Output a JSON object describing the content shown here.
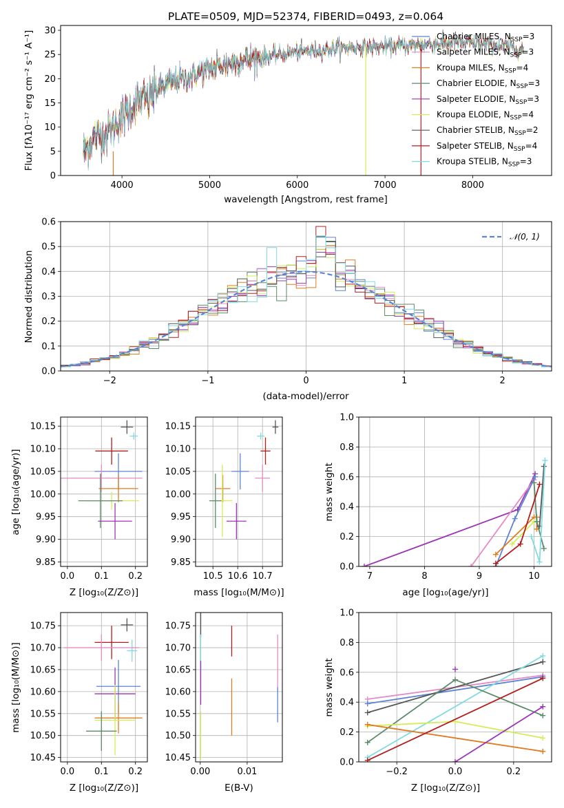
{
  "colors": {
    "chabrier_miles": "#5b84d4",
    "salpeter_miles": "#e58ac5",
    "kroupa_miles": "#e07b1f",
    "chabrier_elodie": "#5a8a68",
    "salpeter_elodie": "#9b35b5",
    "kroupa_elodie": "#d6ec55",
    "chabrier_stelib": "#555555",
    "salpeter_stelib": "#b51c1c",
    "kroupa_stelib": "#7fdbe0"
  },
  "legend_entries": [
    {
      "key": "chabrier_miles",
      "pre": "Chabrier MILES, N",
      "sub": "SSP",
      "post": "=3"
    },
    {
      "key": "salpeter_miles",
      "pre": "Salpeter MILES, N",
      "sub": "SSP",
      "post": "=3"
    },
    {
      "key": "kroupa_miles",
      "pre": "Kroupa MILES, N",
      "sub": "SSP",
      "post": "=4"
    },
    {
      "key": "chabrier_elodie",
      "pre": "Chabrier ELODIE, N",
      "sub": "SSP",
      "post": "=3"
    },
    {
      "key": "salpeter_elodie",
      "pre": "Salpeter ELODIE, N",
      "sub": "SSP",
      "post": "=3"
    },
    {
      "key": "kroupa_elodie",
      "pre": "Kroupa ELODIE, N",
      "sub": "SSP",
      "post": "=4"
    },
    {
      "key": "chabrier_stelib",
      "pre": "Chabrier STELIB, N",
      "sub": "SSP",
      "post": "=2"
    },
    {
      "key": "salpeter_stelib",
      "pre": "Salpeter STELIB, N",
      "sub": "SSP",
      "post": "=4"
    },
    {
      "key": "kroupa_stelib",
      "pre": "Kroupa STELIB, N",
      "sub": "SSP",
      "post": "=3"
    }
  ],
  "chart_data": [
    {
      "id": "spectrum",
      "type": "line",
      "title": "PLATE=0509, MJD=52374, FIBERID=0493, z=0.064",
      "xlabel": "wavelength [Angstrom, rest frame]",
      "ylabel": "Flux [fλ10⁻¹⁷ erg cm⁻² s⁻¹ A⁻¹]",
      "xlim": [
        3300,
        8900
      ],
      "ylim": [
        0,
        31
      ],
      "xticks": [
        4000,
        5000,
        6000,
        7000,
        8000
      ],
      "yticks": [
        0,
        5,
        10,
        15,
        20,
        25,
        30
      ],
      "continuum": [
        [
          3560,
          5
        ],
        [
          3700,
          8
        ],
        [
          3850,
          9
        ],
        [
          3950,
          11
        ],
        [
          4050,
          13
        ],
        [
          4150,
          15
        ],
        [
          4300,
          16
        ],
        [
          4400,
          18
        ],
        [
          4600,
          19.5
        ],
        [
          4800,
          20.5
        ],
        [
          5000,
          22
        ],
        [
          5200,
          23
        ],
        [
          5400,
          24
        ],
        [
          5600,
          24.5
        ],
        [
          5800,
          25
        ],
        [
          6000,
          25.5
        ],
        [
          6300,
          26
        ],
        [
          6600,
          26.5
        ],
        [
          7000,
          26.5
        ],
        [
          7400,
          27
        ],
        [
          7800,
          27.5
        ],
        [
          8200,
          27
        ],
        [
          8600,
          26
        ]
      ],
      "spikes": [
        {
          "x": 3900,
          "y": 5
        },
        {
          "x": 6780,
          "y": 27
        },
        {
          "x": 7410,
          "y": 27
        }
      ],
      "legend": "top-right"
    },
    {
      "id": "residuals",
      "type": "step",
      "xlabel": "(data-model)/error",
      "ylabel": "Normed distribution",
      "xlim": [
        -2.5,
        2.5
      ],
      "ylim": [
        0,
        0.6
      ],
      "xticks": [
        -2,
        -1,
        0,
        1,
        2
      ],
      "yticks": [
        0,
        0.1,
        0.2,
        0.3,
        0.4,
        0.5,
        0.6
      ],
      "normal_label": "𝒩(0, 1)",
      "normal_mean": 0,
      "normal_sigma": 1,
      "bin_width": 0.1,
      "legend": "top-right"
    },
    {
      "id": "age_vs_Z",
      "type": "errorbar",
      "xlabel": "Z [log₁₀(Z/Z⊙)]",
      "ylabel": "age  [log₁₀(age/yr)]",
      "xlim": [
        -0.02,
        0.235
      ],
      "ylim": [
        9.84,
        10.17
      ],
      "xticks": [
        0.0,
        0.1,
        0.2
      ],
      "yticks": [
        9.85,
        9.9,
        9.95,
        10.0,
        10.05,
        10.1,
        10.15
      ],
      "points": [
        {
          "key": "chabrier_stelib",
          "x": 0.175,
          "y": 10.148,
          "xerr": 0.018,
          "yerr": 0.015
        },
        {
          "key": "kroupa_stelib",
          "x": 0.195,
          "y": 10.128,
          "xerr": 0.012,
          "yerr": 0.008
        },
        {
          "key": "salpeter_stelib",
          "x": 0.13,
          "y": 10.095,
          "xerr": 0.048,
          "yerr": 0.03
        },
        {
          "key": "chabrier_miles",
          "x": 0.15,
          "y": 10.05,
          "xerr": 0.07,
          "yerr": 0.04
        },
        {
          "key": "salpeter_miles",
          "x": 0.1,
          "y": 10.035,
          "xerr": 0.12,
          "yerr": 0.03
        },
        {
          "key": "kroupa_miles",
          "x": 0.15,
          "y": 10.012,
          "xerr": 0.058,
          "yerr": 0.03
        },
        {
          "key": "kroupa_elodie",
          "x": 0.13,
          "y": 9.985,
          "xerr": 0.08,
          "yerr": 0.02
        },
        {
          "key": "chabrier_elodie",
          "x": 0.097,
          "y": 9.985,
          "xerr": 0.065,
          "yerr": 0.06
        },
        {
          "key": "salpeter_elodie",
          "x": 0.14,
          "y": 9.94,
          "xerr": 0.05,
          "yerr": 0.04
        }
      ]
    },
    {
      "id": "age_vs_mass",
      "type": "errorbar",
      "xlabel": "mass [log₁₀(M/M⊙)]",
      "ylabel": "",
      "xlim": [
        10.43,
        10.78
      ],
      "ylim": [
        9.84,
        10.17
      ],
      "xticks": [
        10.5,
        10.6,
        10.7
      ],
      "yticks": [
        9.85,
        9.9,
        9.95,
        10.0,
        10.05,
        10.1,
        10.15
      ],
      "points": [
        {
          "key": "chabrier_stelib",
          "x": 10.752,
          "y": 10.148,
          "xerr": 0.012,
          "yerr": 0.015
        },
        {
          "key": "kroupa_stelib",
          "x": 10.693,
          "y": 10.128,
          "xerr": 0.015,
          "yerr": 0.008
        },
        {
          "key": "salpeter_stelib",
          "x": 10.712,
          "y": 10.095,
          "xerr": 0.02,
          "yerr": 0.03
        },
        {
          "key": "chabrier_miles",
          "x": 10.61,
          "y": 10.05,
          "xerr": 0.035,
          "yerr": 0.04
        },
        {
          "key": "salpeter_miles",
          "x": 10.7,
          "y": 10.035,
          "xerr": 0.03,
          "yerr": 0.03
        },
        {
          "key": "kroupa_miles",
          "x": 10.54,
          "y": 10.012,
          "xerr": 0.03,
          "yerr": 0.03
        },
        {
          "key": "kroupa_elodie",
          "x": 10.538,
          "y": 9.985,
          "xerr": 0.04,
          "yerr": 0.08
        },
        {
          "key": "chabrier_elodie",
          "x": 10.51,
          "y": 9.985,
          "xerr": 0.025,
          "yerr": 0.06
        },
        {
          "key": "salpeter_elodie",
          "x": 10.595,
          "y": 9.94,
          "xerr": 0.04,
          "yerr": 0.04
        }
      ]
    },
    {
      "id": "weight_vs_age",
      "type": "line",
      "xlabel": "age  [log₁₀(age/yr)]",
      "ylabel": "mass weight",
      "xlim": [
        6.8,
        10.32
      ],
      "ylim": [
        0,
        1.0
      ],
      "xticks": [
        7,
        8,
        9,
        10
      ],
      "yticks": [
        0,
        0.2,
        0.4,
        0.6,
        0.8,
        1.0
      ],
      "series": [
        {
          "key": "salpeter_elodie",
          "points": [
            [
              6.9,
              0.0
            ],
            [
              9.7,
              0.38
            ],
            [
              10.02,
              0.62
            ]
          ]
        },
        {
          "key": "salpeter_miles",
          "points": [
            [
              8.85,
              0.0
            ],
            [
              10.0,
              0.58
            ]
          ]
        },
        {
          "key": "chabrier_miles",
          "points": [
            [
              9.3,
              0.0
            ],
            [
              9.65,
              0.32
            ],
            [
              10.02,
              0.6
            ]
          ]
        },
        {
          "key": "kroupa_miles",
          "points": [
            [
              9.3,
              0.08
            ],
            [
              10.0,
              0.33
            ],
            [
              10.05,
              0.33
            ],
            [
              10.05,
              0.25
            ]
          ]
        },
        {
          "key": "kroupa_elodie",
          "points": [
            [
              9.6,
              0.15
            ],
            [
              10.0,
              0.3
            ],
            [
              10.05,
              0.3
            ]
          ]
        },
        {
          "key": "chabrier_elodie",
          "points": [
            [
              10.0,
              0.56
            ],
            [
              10.05,
              0.3
            ],
            [
              10.18,
              0.12
            ]
          ]
        },
        {
          "key": "salpeter_stelib",
          "points": [
            [
              9.3,
              0.02
            ],
            [
              9.75,
              0.15
            ],
            [
              10.1,
              0.55
            ]
          ]
        },
        {
          "key": "chabrier_stelib",
          "points": [
            [
              10.1,
              0.27
            ],
            [
              10.18,
              0.67
            ]
          ]
        },
        {
          "key": "kroupa_stelib",
          "points": [
            [
              9.95,
              0.2
            ],
            [
              10.1,
              0.03
            ],
            [
              10.2,
              0.71
            ]
          ]
        }
      ]
    },
    {
      "id": "mass_vs_Z",
      "type": "errorbar",
      "xlabel": "Z [log₁₀(Z/Z⊙)]",
      "ylabel": "mass [log₁₀(M/M⊙)]",
      "xlim": [
        -0.02,
        0.235
      ],
      "ylim": [
        10.44,
        10.78
      ],
      "xticks": [
        0.0,
        0.1,
        0.2
      ],
      "yticks": [
        10.45,
        10.5,
        10.55,
        10.6,
        10.65,
        10.7,
        10.75
      ],
      "points": [
        {
          "key": "chabrier_stelib",
          "x": 0.175,
          "y": 10.752,
          "xerr": 0.018,
          "yerr": 0.015
        },
        {
          "key": "kroupa_stelib",
          "x": 0.19,
          "y": 10.693,
          "xerr": 0.015,
          "yerr": 0.025
        },
        {
          "key": "salpeter_stelib",
          "x": 0.13,
          "y": 10.712,
          "xerr": 0.05,
          "yerr": 0.038
        },
        {
          "key": "salpeter_miles",
          "x": 0.1,
          "y": 10.7,
          "xerr": 0.11,
          "yerr": 0.03
        },
        {
          "key": "chabrier_miles",
          "x": 0.15,
          "y": 10.612,
          "xerr": 0.065,
          "yerr": 0.06
        },
        {
          "key": "salpeter_elodie",
          "x": 0.14,
          "y": 10.595,
          "xerr": 0.06,
          "yerr": 0.06
        },
        {
          "key": "kroupa_miles",
          "x": 0.15,
          "y": 10.54,
          "xerr": 0.07,
          "yerr": 0.035
        },
        {
          "key": "kroupa_elodie",
          "x": 0.14,
          "y": 10.535,
          "xerr": 0.06,
          "yerr": 0.08
        },
        {
          "key": "chabrier_elodie",
          "x": 0.1,
          "y": 10.51,
          "xerr": 0.045,
          "yerr": 0.045
        }
      ]
    },
    {
      "id": "mass_vs_ebv",
      "type": "errorbar",
      "xlabel": "E(B-V)",
      "ylabel": "",
      "xlim": [
        -0.001,
        0.0175
      ],
      "ylim": [
        10.44,
        10.78
      ],
      "xticks": [
        0.0,
        0.01
      ],
      "yticks": [
        10.45,
        10.5,
        10.55,
        10.6,
        10.65,
        10.7,
        10.75
      ],
      "points": [
        {
          "key": "chabrier_stelib",
          "x": 0.0001,
          "y": 10.752,
          "yerr": 0.028
        },
        {
          "key": "kroupa_stelib",
          "x": 0.0001,
          "y": 10.69,
          "yerr": 0.04
        },
        {
          "key": "salpeter_elodie",
          "x": 0.0001,
          "y": 10.62,
          "yerr": 0.05
        },
        {
          "key": "kroupa_elodie",
          "x": 0.0001,
          "y": 10.5,
          "yerr": 0.055
        },
        {
          "key": "salpeter_stelib",
          "x": 0.0067,
          "y": 10.715,
          "yerr": 0.035
        },
        {
          "key": "kroupa_miles",
          "x": 0.0067,
          "y": 10.565,
          "yerr": 0.065
        },
        {
          "key": "salpeter_miles",
          "x": 0.0165,
          "y": 10.665,
          "yerr": 0.065
        },
        {
          "key": "chabrier_miles",
          "x": 0.0165,
          "y": 10.57,
          "yerr": 0.04
        }
      ]
    },
    {
      "id": "weight_vs_Z",
      "type": "line",
      "xlabel": "Z [log₁₀(Z/Z⊙)]",
      "ylabel": "mass weight",
      "xlim": [
        -0.33,
        0.33
      ],
      "ylim": [
        0,
        1.0
      ],
      "xticks": [
        -0.2,
        0.0,
        0.2
      ],
      "yticks": [
        0,
        0.2,
        0.4,
        0.6,
        0.8,
        1.0
      ],
      "series": [
        {
          "key": "salpeter_miles",
          "points": [
            [
              -0.3,
              0.42
            ],
            [
              0.3,
              0.58
            ]
          ]
        },
        {
          "key": "chabrier_miles",
          "points": [
            [
              -0.3,
              0.39
            ],
            [
              0.3,
              0.57
            ]
          ]
        },
        {
          "key": "chabrier_stelib",
          "points": [
            [
              -0.3,
              0.33
            ],
            [
              0.3,
              0.67
            ]
          ]
        },
        {
          "key": "kroupa_stelib",
          "points": [
            [
              -0.3,
              0.03
            ],
            [
              0.3,
              0.71
            ]
          ]
        },
        {
          "key": "chabrier_elodie",
          "points": [
            [
              -0.3,
              0.13
            ],
            [
              0.0,
              0.55
            ],
            [
              0.3,
              0.31
            ]
          ]
        },
        {
          "key": "kroupa_elodie",
          "points": [
            [
              -0.3,
              0.24
            ],
            [
              0.0,
              0.27
            ],
            [
              0.3,
              0.16
            ]
          ]
        },
        {
          "key": "kroupa_miles",
          "points": [
            [
              -0.3,
              0.25
            ],
            [
              0.3,
              0.07
            ]
          ]
        },
        {
          "key": "salpeter_stelib",
          "points": [
            [
              -0.3,
              0.01
            ],
            [
              0.3,
              0.56
            ]
          ]
        },
        {
          "key": "salpeter_elodie",
          "points": [
            [
              0.0,
              0.0
            ],
            [
              0.3,
              0.37
            ]
          ],
          "extra": [
            [
              0.0,
              0.62
            ]
          ]
        }
      ]
    }
  ]
}
